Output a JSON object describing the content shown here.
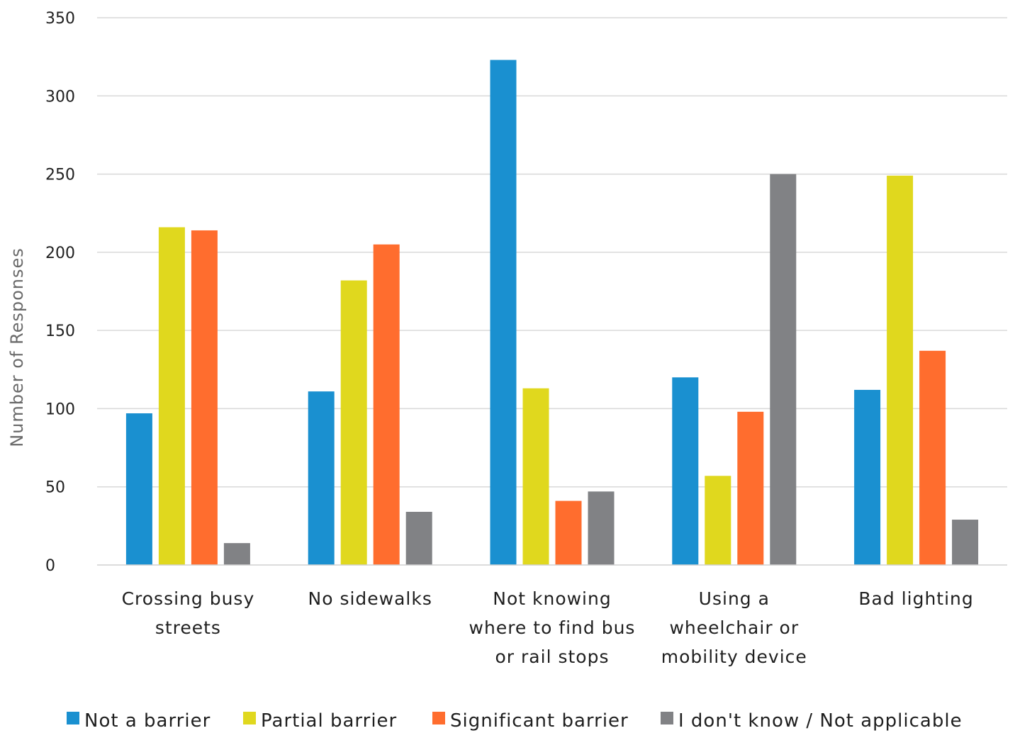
{
  "chart_data": {
    "type": "bar",
    "title": "",
    "xlabel": "",
    "ylabel": "Number of Responses",
    "ylim": [
      0,
      350
    ],
    "yticks": [
      0,
      50,
      100,
      150,
      200,
      250,
      300,
      350
    ],
    "grid": true,
    "legend_position": "bottom",
    "categories": [
      [
        "Crossing busy",
        "streets"
      ],
      [
        "No sidewalks"
      ],
      [
        "Not knowing",
        "where to find bus",
        "or rail stops"
      ],
      [
        "Using a",
        "wheelchair or",
        "mobility device"
      ],
      [
        "Bad lighting"
      ]
    ],
    "series": [
      {
        "name": "Not a barrier",
        "color": "#1a90d0",
        "values": [
          97,
          111,
          323,
          120,
          112
        ]
      },
      {
        "name": "Partial barrier",
        "color": "#e0d81e",
        "values": [
          216,
          182,
          113,
          57,
          249
        ]
      },
      {
        "name": "Significant barrier",
        "color": "#ff6d2e",
        "values": [
          214,
          205,
          41,
          98,
          137
        ]
      },
      {
        "name": "I don't know / Not applicable",
        "color": "#818285",
        "values": [
          14,
          34,
          47,
          250,
          29
        ]
      }
    ]
  }
}
